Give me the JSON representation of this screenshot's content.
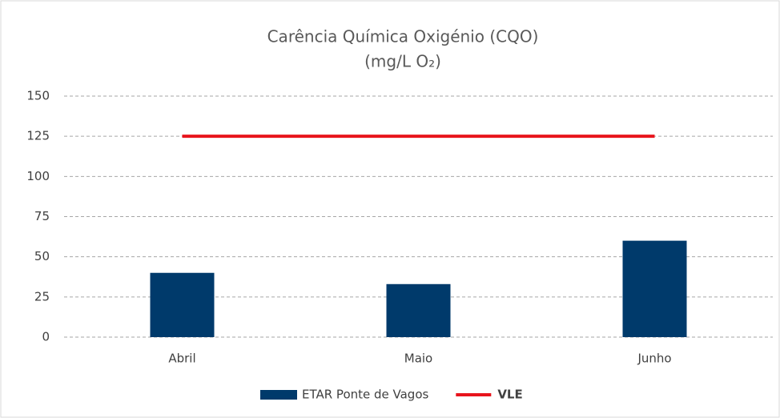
{
  "chart_data": {
    "type": "bar",
    "title": "Carência Química Oxigénio (CQO)",
    "subtitle": "(mg/L O₂)",
    "categories": [
      "Abril",
      "Maio",
      "Junho"
    ],
    "series": [
      {
        "name": "ETAR Ponte de Vagos",
        "color": "#003a6b",
        "type": "bar",
        "values": [
          40,
          33,
          60
        ]
      },
      {
        "name": "VLE",
        "color": "#e8141c",
        "type": "line",
        "values": [
          125,
          125,
          125
        ]
      }
    ],
    "ylim": [
      0,
      150
    ],
    "yticks": [
      0,
      25,
      50,
      75,
      100,
      125,
      150
    ],
    "grid": true,
    "legend": "bottom"
  }
}
